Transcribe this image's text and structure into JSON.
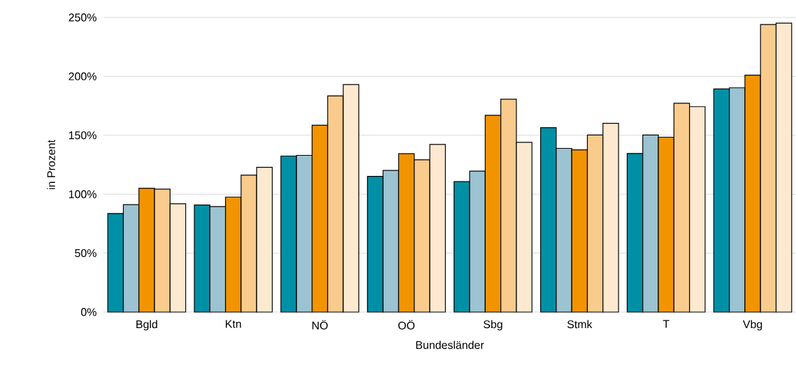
{
  "chart_data": {
    "type": "bar",
    "xlabel": "Bundesländer",
    "ylabel": "in Prozent",
    "categories": [
      "Bgld",
      "Ktn",
      "NÖ",
      "OÖ",
      "Sbg",
      "Stmk",
      "T",
      "Vbg"
    ],
    "series": [
      {
        "color": "#0090a6",
        "values": [
          83.6,
          90.9,
          132.4,
          115.2,
          110.7,
          156.5,
          134.6,
          189.3
        ]
      },
      {
        "color": "#9cc3d1",
        "values": [
          91.1,
          89.5,
          133,
          120.2,
          119.6,
          138.9,
          150.2,
          190.3
        ]
      },
      {
        "color": "#f29400",
        "values": [
          105.1,
          97.6,
          158.5,
          134.4,
          167,
          137.7,
          148.4,
          201.1
        ]
      },
      {
        "color": "#f9cb8c",
        "values": [
          104.3,
          116.2,
          183.4,
          129.2,
          180.6,
          150.2,
          177.2,
          244
        ]
      },
      {
        "color": "#fde9d0",
        "values": [
          91.9,
          122.9,
          193,
          142.3,
          144,
          160.2,
          174.3,
          245.2
        ]
      }
    ],
    "ylim": [
      0,
      250
    ],
    "yticks": [
      {
        "value": 0,
        "label": "0%"
      },
      {
        "value": 50,
        "label": "50%"
      },
      {
        "value": 100,
        "label": "100%"
      },
      {
        "value": 150,
        "label": "150%"
      },
      {
        "value": 200,
        "label": "200%"
      },
      {
        "value": 250,
        "label": "250%"
      }
    ],
    "grid": "y"
  }
}
